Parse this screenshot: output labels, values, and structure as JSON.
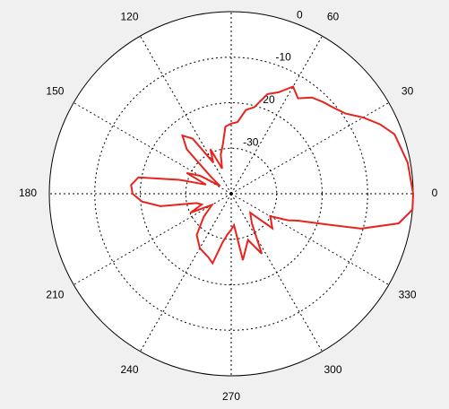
{
  "chart_data": {
    "type": "polar",
    "theta": [
      0,
      10,
      20,
      25,
      30,
      35,
      40,
      45,
      50,
      55,
      60,
      65,
      70,
      75,
      80,
      85,
      90,
      95,
      100,
      105,
      110,
      115,
      120,
      125,
      130,
      135,
      140,
      145,
      150,
      155,
      160,
      165,
      170,
      175,
      180,
      185,
      190,
      195,
      200,
      205,
      210,
      220,
      230,
      240,
      250,
      255,
      260,
      265,
      270,
      275,
      280,
      290,
      297,
      305,
      315,
      320,
      330,
      335,
      338,
      342,
      345,
      350,
      355
    ],
    "r": [
      0,
      -0.6,
      -1.8,
      -3.9,
      -6.5,
      -9.3,
      -10.6,
      -11.5,
      -12.4,
      -14.4,
      -12.8,
      -15.4,
      -16.7,
      -20.3,
      -21.3,
      -24.2,
      -24.6,
      -25.2,
      -29.2,
      -31.1,
      -34.1,
      -29.2,
      -32.1,
      -25.2,
      -23.3,
      -26.2,
      -34.1,
      -37,
      -32.1,
      -29.2,
      -34.1,
      -28.2,
      -19.3,
      -17.9,
      -18.3,
      -20.3,
      -24.2,
      -32.1,
      -33.1,
      -30.1,
      -35.1,
      -32.1,
      -28.2,
      -26.2,
      -25.2,
      -24.2,
      -29.2,
      -31.1,
      -32.1,
      -33.1,
      -25.2,
      -29.2,
      -25.2,
      -32.1,
      -34.1,
      -28.2,
      -30.1,
      -26.2,
      -24.2,
      -18.3,
      -10.4,
      -2.6,
      0
    ],
    "color": "#e8231e",
    "rlim": [
      -40,
      0
    ],
    "rticks": [
      -30,
      -20,
      -10,
      0
    ],
    "thetaticks": [
      0,
      30,
      60,
      120,
      150,
      180,
      210,
      240,
      270,
      300,
      330
    ],
    "grid": true
  }
}
